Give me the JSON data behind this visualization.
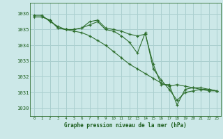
{
  "title": "Graphe pression niveau de la mer (hPa)",
  "bg_color": "#cce8e8",
  "grid_color": "#aacfcf",
  "line_color": "#2d6e2d",
  "text_color": "#1a5c1a",
  "xlim": [
    -0.5,
    23.5
  ],
  "ylim": [
    1029.5,
    1036.7
  ],
  "yticks": [
    1030,
    1031,
    1032,
    1033,
    1034,
    1035,
    1036
  ],
  "xticks": [
    0,
    1,
    2,
    3,
    4,
    5,
    6,
    7,
    8,
    9,
    10,
    11,
    12,
    13,
    14,
    15,
    16,
    17,
    18,
    19,
    20,
    21,
    22,
    23
  ],
  "series": [
    [
      1035.8,
      1035.8,
      1035.6,
      1035.1,
      1035.0,
      1035.0,
      1035.1,
      1035.5,
      1035.6,
      1035.1,
      1035.0,
      1034.9,
      1034.7,
      1034.6,
      1034.7,
      1032.8,
      1031.5,
      1031.5,
      1030.2,
      1031.2,
      1031.3,
      1031.3,
      1031.2,
      1031.1
    ],
    [
      1035.8,
      1035.8,
      1035.6,
      1035.1,
      1035.0,
      1035.0,
      1035.1,
      1035.3,
      1035.5,
      1035.0,
      1034.9,
      1034.6,
      1034.2,
      1033.5,
      1034.8,
      1032.5,
      1031.8,
      1031.2,
      1030.5,
      1031.0,
      1031.1,
      1031.2,
      1031.2,
      1031.1
    ],
    [
      1035.9,
      1035.9,
      1035.5,
      1035.2,
      1035.0,
      1034.9,
      1034.8,
      1034.6,
      1034.3,
      1034.0,
      1033.6,
      1033.2,
      1032.8,
      1032.5,
      1032.2,
      1031.9,
      1031.6,
      1031.4,
      1031.5,
      1031.4,
      1031.3,
      1031.2,
      1031.1,
      1031.1
    ]
  ]
}
